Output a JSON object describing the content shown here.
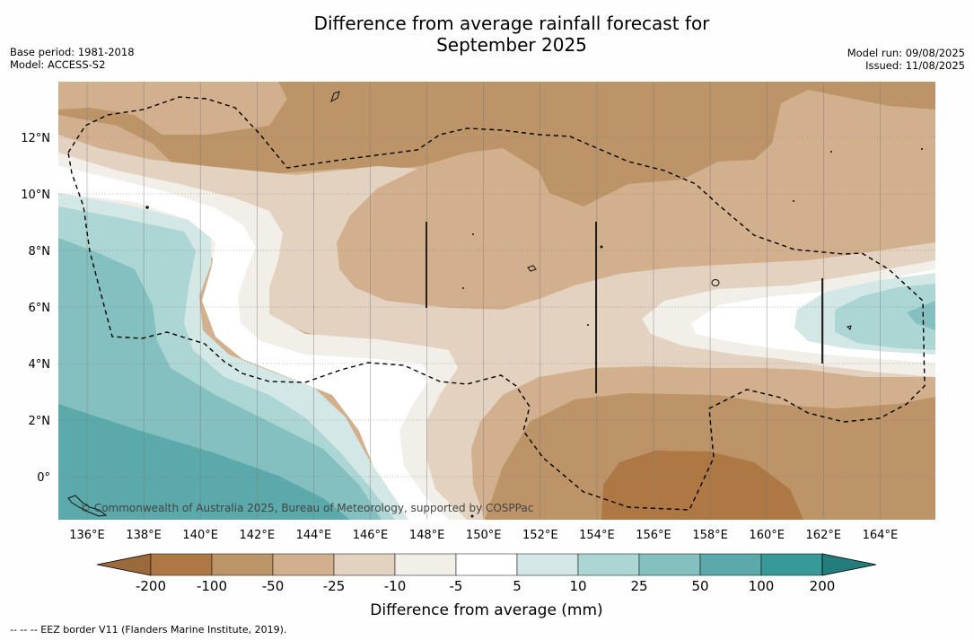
{
  "title_line1": "Difference from average rainfall forecast for",
  "title_line2": "September 2025",
  "meta_left": {
    "base_period": "Base period: 1981-2018",
    "model": "Model: ACCESS-S2"
  },
  "meta_right": {
    "model_run": "Model run: 09/08/2025",
    "issued": "Issued: 11/08/2025"
  },
  "longitude_labels": [
    "136°E",
    "138°E",
    "140°E",
    "142°E",
    "144°E",
    "146°E",
    "148°E",
    "150°E",
    "152°E",
    "154°E",
    "156°E",
    "158°E",
    "160°E",
    "162°E",
    "164°E"
  ],
  "latitude_labels": [
    "12°N",
    "10°N",
    "8°N",
    "6°N",
    "4°N",
    "2°N",
    "0°"
  ],
  "credit": "© Commonwealth of Australia 2025, Bureau of Meteorology, supported by COSPPac",
  "colorbar": {
    "ticks": [
      "-200",
      "-100",
      "-50",
      "-25",
      "-10",
      "-5",
      "5",
      "10",
      "25",
      "50",
      "100",
      "200"
    ],
    "colors": [
      "#9b6a3c",
      "#ad7844",
      "#bc9467",
      "#d2b08e",
      "#e4d2c0",
      "#f2eee8",
      "#ffffff",
      "#d3e8e6",
      "#acd6d4",
      "#84c0c0",
      "#5ba9aa",
      "#379a98",
      "#237d7a"
    ],
    "title": "Difference from average (mm)"
  },
  "footnote": "--  --  -- EEZ border V11 (Flanders Marine Institute, 2019)."
}
